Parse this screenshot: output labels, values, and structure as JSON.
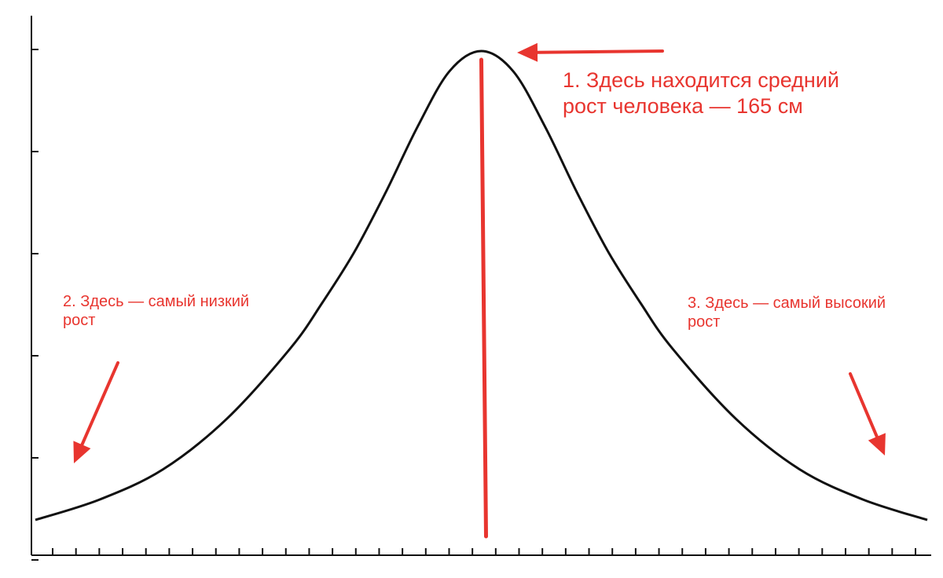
{
  "chart_data": {
    "type": "line",
    "title": "",
    "xlabel": "",
    "ylabel": "",
    "grid": false,
    "x_ticks_count": 38,
    "y_ticks_count": 6,
    "xlim": [
      -3.5,
      3.5
    ],
    "ylim": [
      0,
      1.1
    ],
    "series": [
      {
        "x": [
          -3.5,
          -3.0,
          -2.5,
          -2.0,
          -1.5,
          -1.25,
          -1.0,
          -0.75,
          -0.5,
          -0.25,
          0,
          0.25,
          0.5,
          0.75,
          1.0,
          1.25,
          1.5,
          2.0,
          2.5,
          3.0,
          3.5
        ],
        "y": [
          0.07,
          0.11,
          0.17,
          0.27,
          0.41,
          0.5,
          0.6,
          0.72,
          0.85,
          0.96,
          1.0,
          0.96,
          0.85,
          0.72,
          0.6,
          0.5,
          0.41,
          0.27,
          0.17,
          0.11,
          0.07
        ]
      }
    ],
    "peak_marker_x": 0
  },
  "annotations": {
    "peak": "1. Здесь находится средний\nрост человека — 165 см",
    "low": "2. Здесь — самый низкий\nрост",
    "high": "3. Здесь — самый высокий\nрост"
  },
  "colors": {
    "curve": "#111111",
    "axis": "#111111",
    "annotation": "#e8352f"
  }
}
